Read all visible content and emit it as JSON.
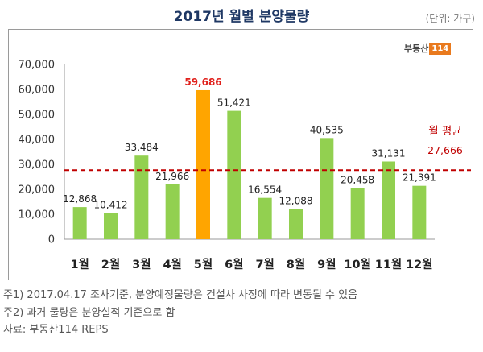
{
  "title": "2017년 월별 분양물량",
  "unit_label": "(단위: 가구)",
  "logo": {
    "text": "부동산",
    "number": "114"
  },
  "chart_data": {
    "type": "bar",
    "title": "2017년 월별 분양물량",
    "categories": [
      "1월",
      "2월",
      "3월",
      "4월",
      "5월",
      "6월",
      "7월",
      "8월",
      "9월",
      "10월",
      "11월",
      "12월"
    ],
    "values": [
      12868,
      10412,
      33484,
      21966,
      59686,
      51421,
      16554,
      12088,
      40535,
      20458,
      31131,
      21391
    ],
    "value_labels": [
      "12,868",
      "10,412",
      "33,484",
      "21,966",
      "59,686",
      "51,421",
      "16,554",
      "12,088",
      "40,535",
      "20,458",
      "31,131",
      "21,391"
    ],
    "highlight_index": 4,
    "ylim": [
      0,
      70000
    ],
    "yticks": [
      0,
      10000,
      20000,
      30000,
      40000,
      50000,
      60000,
      70000
    ],
    "ytick_labels": [
      "0",
      "10,000",
      "20,000",
      "30,000",
      "40,000",
      "50,000",
      "60,000",
      "70,000"
    ],
    "average": {
      "label": "월 평균",
      "value": 27666,
      "value_label": "27,666"
    },
    "grid": false,
    "colors": {
      "bar": "#92d050",
      "highlight": "#ffa500",
      "highlight_label": "#e0201b",
      "average": "#c00000"
    }
  },
  "notes": [
    "주1) 2017.04.17 조사기준, 분양예정물량은 건설사 사정에 따라 변동될 수 있음",
    "주2) 과거 물량은 분양실적 기준으로 함",
    "자료: 부동산114 REPS"
  ]
}
